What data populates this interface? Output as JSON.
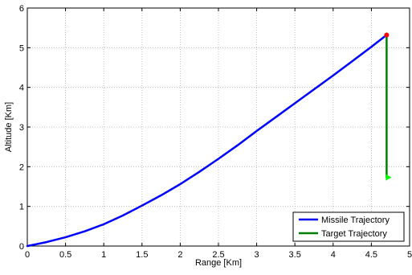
{
  "chart_data": {
    "type": "line",
    "xlabel": "Range [Km]",
    "ylabel": "Altitude [Km]",
    "xlim": [
      0,
      5
    ],
    "ylim": [
      0,
      6
    ],
    "x_ticks": [
      "0",
      "0.5",
      "1",
      "1.5",
      "2",
      "2.5",
      "3",
      "3.5",
      "4",
      "4.5",
      "5"
    ],
    "y_ticks": [
      "0",
      "1",
      "2",
      "3",
      "4",
      "5",
      "6"
    ],
    "grid": true,
    "legend_position": "bottom-right",
    "series": [
      {
        "name": "Missile Trajectory",
        "color": "#0000ff",
        "x": [
          0,
          0.25,
          0.5,
          0.75,
          1.0,
          1.25,
          1.5,
          1.75,
          2.0,
          2.25,
          2.5,
          2.75,
          3.0,
          3.25,
          3.5,
          3.75,
          4.0,
          4.25,
          4.5,
          4.7
        ],
        "y": [
          0,
          0.1,
          0.22,
          0.37,
          0.55,
          0.77,
          1.02,
          1.28,
          1.56,
          1.87,
          2.2,
          2.54,
          2.9,
          3.25,
          3.6,
          3.95,
          4.3,
          4.66,
          5.02,
          5.32
        ]
      },
      {
        "name": "Target Trajectory",
        "color": "#008000",
        "x": [
          4.7,
          4.7
        ],
        "y": [
          5.32,
          1.73
        ]
      }
    ],
    "markers": [
      {
        "x": 4.7,
        "y": 5.32,
        "shape": "circle",
        "color": "#ff0000"
      },
      {
        "x": 4.7,
        "y": 1.73,
        "shape": "triangle-right",
        "color": "#00ff00"
      }
    ]
  }
}
